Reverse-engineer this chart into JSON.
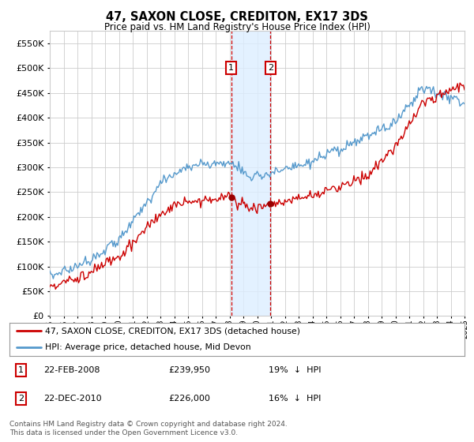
{
  "title": "47, SAXON CLOSE, CREDITON, EX17 3DS",
  "subtitle": "Price paid vs. HM Land Registry's House Price Index (HPI)",
  "ylim": [
    0,
    575000
  ],
  "yticks": [
    0,
    50000,
    100000,
    150000,
    200000,
    250000,
    300000,
    350000,
    400000,
    450000,
    500000,
    550000
  ],
  "xstart_year": 1995,
  "xend_year": 2025,
  "sale1_date": 2008.12,
  "sale1_price": 239950,
  "sale2_date": 2010.96,
  "sale2_price": 226000,
  "legend_house": "47, SAXON CLOSE, CREDITON, EX17 3DS (detached house)",
  "legend_hpi": "HPI: Average price, detached house, Mid Devon",
  "footer": "Contains HM Land Registry data © Crown copyright and database right 2024.\nThis data is licensed under the Open Government Licence v3.0.",
  "house_color": "#cc0000",
  "hpi_color": "#5599cc",
  "shade_color": "#ddeeff",
  "background_color": "#ffffff",
  "grid_color": "#cccccc"
}
